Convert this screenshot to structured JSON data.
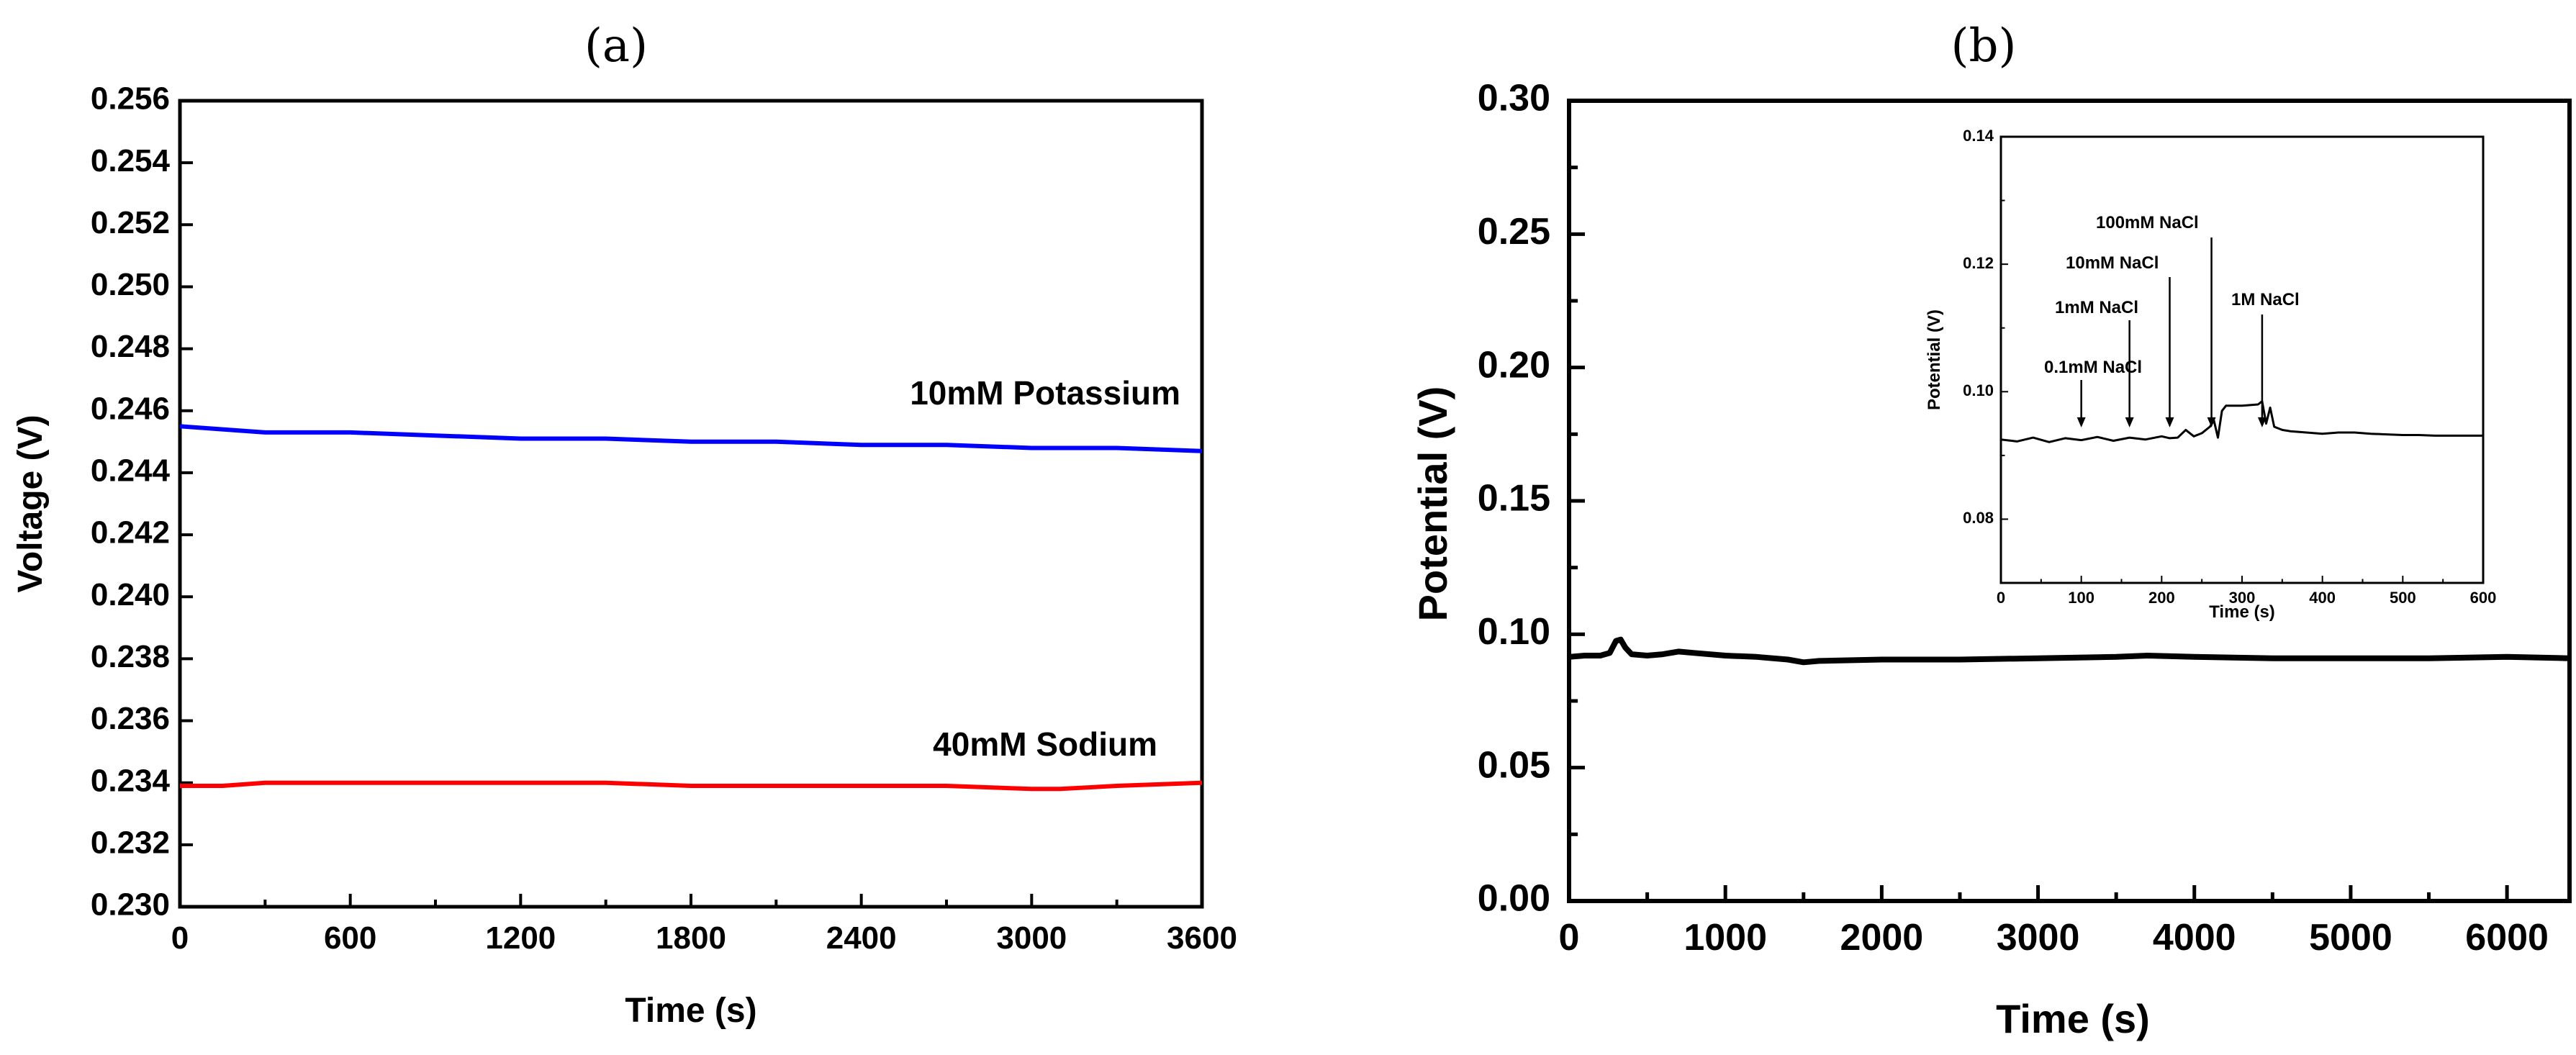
{
  "chart_data": [
    {
      "panel": "(a)",
      "type": "line",
      "xlabel": "Time (s)",
      "ylabel": "Voltage (V)",
      "xlim": [
        0,
        3600
      ],
      "ylim": [
        0.23,
        0.256
      ],
      "xticks": [
        "0",
        "600",
        "1200",
        "1800",
        "2400",
        "3000",
        "3600"
      ],
      "yticks": [
        "0.230",
        "0.232",
        "0.234",
        "0.236",
        "0.238",
        "0.240",
        "0.242",
        "0.244",
        "0.246",
        "0.248",
        "0.250",
        "0.252",
        "0.254",
        "0.256"
      ],
      "series": [
        {
          "name": "10mM Potassium",
          "color": "#0000ff",
          "x": [
            0,
            150,
            300,
            600,
            900,
            1200,
            1500,
            1800,
            2100,
            2400,
            2700,
            3000,
            3300,
            3600
          ],
          "y": [
            0.2455,
            0.2454,
            0.2453,
            0.2453,
            0.2452,
            0.2451,
            0.2451,
            0.245,
            0.245,
            0.2449,
            0.2449,
            0.2448,
            0.2448,
            0.2447
          ]
        },
        {
          "name": "40mM Sodium",
          "color": "#ff0000",
          "x": [
            0,
            150,
            300,
            600,
            900,
            1200,
            1500,
            1800,
            2100,
            2400,
            2700,
            3000,
            3100,
            3300,
            3600
          ],
          "y": [
            0.2339,
            0.2339,
            0.234,
            0.234,
            0.234,
            0.234,
            0.234,
            0.2339,
            0.2339,
            0.2339,
            0.2339,
            0.2338,
            0.2338,
            0.2339,
            0.234
          ]
        }
      ]
    },
    {
      "panel": "(b)",
      "type": "line",
      "xlabel": "Time (s)",
      "ylabel": "Potential (V)",
      "xlim": [
        0,
        6400
      ],
      "ylim": [
        0.0,
        0.3
      ],
      "xticks": [
        "0",
        "1000",
        "2000",
        "3000",
        "4000",
        "5000",
        "6000"
      ],
      "yticks": [
        "0.00",
        "0.05",
        "0.10",
        "0.15",
        "0.20",
        "0.25",
        "0.30"
      ],
      "series": [
        {
          "name": "Potential",
          "color": "#000000",
          "x": [
            0,
            100,
            200,
            260,
            300,
            330,
            360,
            400,
            500,
            600,
            700,
            800,
            1000,
            1200,
            1400,
            1500,
            1600,
            2000,
            2500,
            3000,
            3500,
            3700,
            4000,
            4500,
            5000,
            5500,
            6000,
            6400
          ],
          "y": [
            0.0915,
            0.092,
            0.092,
            0.093,
            0.0975,
            0.098,
            0.095,
            0.0925,
            0.092,
            0.0925,
            0.0935,
            0.093,
            0.092,
            0.0915,
            0.0905,
            0.0895,
            0.09,
            0.0905,
            0.0905,
            0.091,
            0.0915,
            0.092,
            0.0915,
            0.091,
            0.091,
            0.091,
            0.0915,
            0.091
          ]
        }
      ],
      "inset": {
        "type": "line",
        "xlabel": "Time (s)",
        "ylabel": "Potential (V)",
        "xlim": [
          0,
          600
        ],
        "ylim": [
          0.07,
          0.14
        ],
        "xticks": [
          "0",
          "100",
          "200",
          "300",
          "400",
          "500",
          "600"
        ],
        "yticks": [
          "0.08",
          "0.10",
          "0.12",
          "0.14"
        ],
        "series": [
          {
            "name": "Potential (inset)",
            "color": "#000000",
            "x": [
              0,
              20,
              40,
              60,
              80,
              100,
              120,
              140,
              160,
              180,
              200,
              210,
              220,
              230,
              240,
              250,
              260,
              265,
              270,
              275,
              280,
              300,
              320,
              325,
              330,
              335,
              340,
              350,
              360,
              380,
              400,
              420,
              440,
              460,
              480,
              500,
              520,
              540,
              560,
              580,
              600
            ],
            "y": [
              0.0925,
              0.0922,
              0.0928,
              0.0921,
              0.0927,
              0.0924,
              0.0929,
              0.0923,
              0.0928,
              0.0925,
              0.093,
              0.0927,
              0.0928,
              0.094,
              0.093,
              0.0935,
              0.0945,
              0.0955,
              0.0928,
              0.097,
              0.0978,
              0.0978,
              0.098,
              0.0985,
              0.095,
              0.0975,
              0.0945,
              0.094,
              0.0938,
              0.0936,
              0.0934,
              0.0936,
              0.0936,
              0.0934,
              0.0933,
              0.0932,
              0.0932,
              0.0931,
              0.0931,
              0.0931,
              0.0931
            ]
          }
        ],
        "annotations": [
          {
            "text": "0.1mM NaCl",
            "x": 100
          },
          {
            "text": "1mM NaCl",
            "x": 160
          },
          {
            "text": "10mM NaCl",
            "x": 210
          },
          {
            "text": "100mM NaCl",
            "x": 262
          },
          {
            "text": "1M NaCl",
            "x": 325
          }
        ]
      }
    }
  ]
}
